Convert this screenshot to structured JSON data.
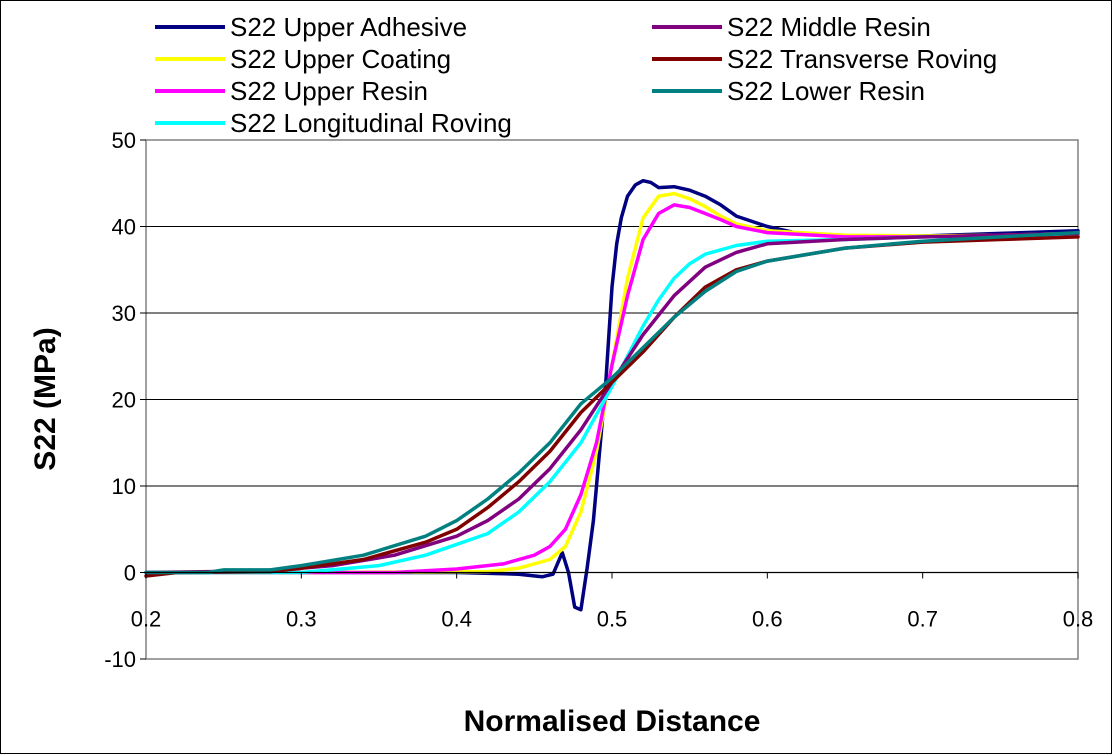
{
  "chart_data": {
    "type": "line",
    "title": "",
    "xlabel": "Normalised Distance",
    "ylabel": "S22 (MPa)",
    "xlim": [
      0.2,
      0.8
    ],
    "ylim": [
      -10,
      50
    ],
    "xticks": [
      0.2,
      0.3,
      0.4,
      0.5,
      0.6,
      0.7,
      0.8
    ],
    "xtick_labels": [
      "0.2",
      "0.3",
      "0.4",
      "0.5",
      "0.6",
      "0.7",
      "0.8"
    ],
    "yticks": [
      -10,
      0,
      10,
      20,
      30,
      40,
      50
    ],
    "ytick_labels": [
      "-10",
      "0",
      "10",
      "20",
      "30",
      "40",
      "50"
    ],
    "grid": "horizontal",
    "legend_position": "top",
    "series": [
      {
        "name": "S22 Upper Adhesive",
        "color": "#000080",
        "points": [
          [
            0.2,
            0
          ],
          [
            0.3,
            0
          ],
          [
            0.4,
            0
          ],
          [
            0.44,
            -0.2
          ],
          [
            0.455,
            -0.5
          ],
          [
            0.462,
            -0.2
          ],
          [
            0.468,
            2.3
          ],
          [
            0.472,
            0
          ],
          [
            0.476,
            -4
          ],
          [
            0.48,
            -4.3
          ],
          [
            0.484,
            0.5
          ],
          [
            0.488,
            6
          ],
          [
            0.492,
            14
          ],
          [
            0.496,
            22
          ],
          [
            0.5,
            33
          ],
          [
            0.503,
            38
          ],
          [
            0.506,
            41
          ],
          [
            0.51,
            43.5
          ],
          [
            0.515,
            44.8
          ],
          [
            0.52,
            45.3
          ],
          [
            0.525,
            45.1
          ],
          [
            0.53,
            44.5
          ],
          [
            0.54,
            44.6
          ],
          [
            0.55,
            44.2
          ],
          [
            0.56,
            43.5
          ],
          [
            0.57,
            42.5
          ],
          [
            0.58,
            41.2
          ],
          [
            0.6,
            40
          ],
          [
            0.62,
            39.2
          ],
          [
            0.65,
            38.8
          ],
          [
            0.7,
            38.9
          ],
          [
            0.75,
            39.2
          ],
          [
            0.8,
            39.5
          ]
        ]
      },
      {
        "name": "S22 Upper Coating",
        "color": "#FFFF00",
        "points": [
          [
            0.2,
            0
          ],
          [
            0.3,
            0
          ],
          [
            0.42,
            0.1
          ],
          [
            0.44,
            0.5
          ],
          [
            0.46,
            1.5
          ],
          [
            0.47,
            3
          ],
          [
            0.48,
            7
          ],
          [
            0.49,
            14
          ],
          [
            0.5,
            24
          ],
          [
            0.51,
            34
          ],
          [
            0.52,
            41
          ],
          [
            0.53,
            43.5
          ],
          [
            0.54,
            43.8
          ],
          [
            0.55,
            43.2
          ],
          [
            0.56,
            42.3
          ],
          [
            0.57,
            41.2
          ],
          [
            0.58,
            40.3
          ],
          [
            0.6,
            39.5
          ],
          [
            0.65,
            39
          ],
          [
            0.7,
            38.9
          ],
          [
            0.75,
            39
          ],
          [
            0.8,
            39.2
          ]
        ]
      },
      {
        "name": "S22 Upper Resin",
        "color": "#FF00FF",
        "points": [
          [
            0.2,
            0
          ],
          [
            0.36,
            0
          ],
          [
            0.4,
            0.4
          ],
          [
            0.43,
            1
          ],
          [
            0.45,
            2
          ],
          [
            0.46,
            3
          ],
          [
            0.47,
            5
          ],
          [
            0.48,
            9
          ],
          [
            0.49,
            15
          ],
          [
            0.5,
            24
          ],
          [
            0.51,
            32
          ],
          [
            0.52,
            38.5
          ],
          [
            0.53,
            41.5
          ],
          [
            0.54,
            42.5
          ],
          [
            0.55,
            42.2
          ],
          [
            0.56,
            41.5
          ],
          [
            0.57,
            40.8
          ],
          [
            0.58,
            40
          ],
          [
            0.6,
            39.3
          ],
          [
            0.65,
            38.8
          ],
          [
            0.7,
            38.8
          ],
          [
            0.8,
            39
          ]
        ]
      },
      {
        "name": "S22 Longitudinal Roving",
        "color": "#00FFFF",
        "points": [
          [
            0.2,
            0
          ],
          [
            0.3,
            0
          ],
          [
            0.35,
            0.8
          ],
          [
            0.38,
            2
          ],
          [
            0.42,
            4.5
          ],
          [
            0.44,
            7
          ],
          [
            0.46,
            10.5
          ],
          [
            0.48,
            15
          ],
          [
            0.5,
            21.5
          ],
          [
            0.51,
            25
          ],
          [
            0.52,
            28.5
          ],
          [
            0.53,
            31.5
          ],
          [
            0.54,
            34
          ],
          [
            0.55,
            35.7
          ],
          [
            0.56,
            36.8
          ],
          [
            0.58,
            37.8
          ],
          [
            0.6,
            38.3
          ],
          [
            0.65,
            38.5
          ],
          [
            0.7,
            38.8
          ],
          [
            0.8,
            39
          ]
        ]
      },
      {
        "name": "S22 Middle Resin",
        "color": "#800080",
        "points": [
          [
            0.2,
            0
          ],
          [
            0.28,
            0.2
          ],
          [
            0.32,
            0.8
          ],
          [
            0.36,
            2
          ],
          [
            0.4,
            4.2
          ],
          [
            0.42,
            6
          ],
          [
            0.44,
            8.5
          ],
          [
            0.46,
            12
          ],
          [
            0.48,
            16.5
          ],
          [
            0.5,
            22
          ],
          [
            0.52,
            27.5
          ],
          [
            0.54,
            32
          ],
          [
            0.56,
            35.3
          ],
          [
            0.58,
            37
          ],
          [
            0.6,
            38
          ],
          [
            0.65,
            38.5
          ],
          [
            0.7,
            38.8
          ],
          [
            0.8,
            39.2
          ]
        ]
      },
      {
        "name": "S22 Transverse Roving",
        "color": "#800000",
        "points": [
          [
            0.2,
            -0.4
          ],
          [
            0.22,
            0
          ],
          [
            0.28,
            0.1
          ],
          [
            0.3,
            0.5
          ],
          [
            0.34,
            1.5
          ],
          [
            0.38,
            3.5
          ],
          [
            0.4,
            5
          ],
          [
            0.42,
            7.5
          ],
          [
            0.44,
            10.5
          ],
          [
            0.46,
            14
          ],
          [
            0.48,
            18.5
          ],
          [
            0.5,
            22
          ],
          [
            0.52,
            25.5
          ],
          [
            0.54,
            29.5
          ],
          [
            0.56,
            33
          ],
          [
            0.58,
            35
          ],
          [
            0.6,
            36
          ],
          [
            0.65,
            37.5
          ],
          [
            0.7,
            38.2
          ],
          [
            0.75,
            38.5
          ],
          [
            0.8,
            38.8
          ]
        ]
      },
      {
        "name": "S22 Lower Resin",
        "color": "#008080",
        "points": [
          [
            0.2,
            0
          ],
          [
            0.24,
            0
          ],
          [
            0.25,
            0.3
          ],
          [
            0.28,
            0.3
          ],
          [
            0.3,
            0.8
          ],
          [
            0.34,
            2
          ],
          [
            0.38,
            4.2
          ],
          [
            0.4,
            6
          ],
          [
            0.42,
            8.5
          ],
          [
            0.44,
            11.5
          ],
          [
            0.46,
            15
          ],
          [
            0.48,
            19.5
          ],
          [
            0.5,
            22.5
          ],
          [
            0.52,
            26
          ],
          [
            0.54,
            29.5
          ],
          [
            0.56,
            32.5
          ],
          [
            0.58,
            34.8
          ],
          [
            0.6,
            36
          ],
          [
            0.65,
            37.5
          ],
          [
            0.7,
            38.3
          ],
          [
            0.75,
            38.8
          ],
          [
            0.8,
            39.3
          ]
        ]
      }
    ]
  }
}
